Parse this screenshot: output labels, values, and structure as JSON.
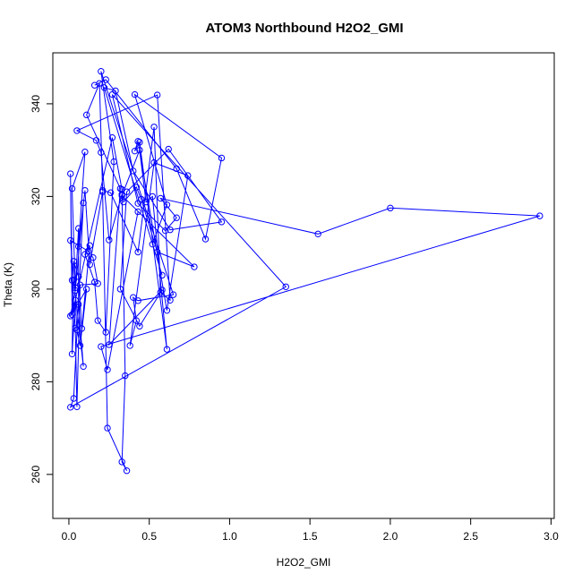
{
  "chart_data": {
    "type": "line",
    "title": "ATOM3 Northbound H2O2_GMI",
    "xlabel": "H2O2_GMI",
    "ylabel": "Theta (K)",
    "xlim": [
      -0.1,
      3.02
    ],
    "ylim": [
      250.5,
      351
    ],
    "x_ticks": [
      0.0,
      0.5,
      1.0,
      1.5,
      2.0,
      2.5,
      3.0
    ],
    "x_tick_labels": [
      "0.0",
      "0.5",
      "1.0",
      "1.5",
      "2.0",
      "2.5",
      "3.0"
    ],
    "y_ticks": [
      260,
      280,
      300,
      320,
      340
    ],
    "y_tick_labels": [
      "260",
      "280",
      "300",
      "320",
      "340"
    ],
    "grid": false,
    "legend": "none",
    "series": [
      {
        "color": "#0000ff",
        "marker": "open-circle",
        "x": [
          0.16,
          0.23,
          0.67,
          0.85,
          0.95,
          0.41,
          0.61,
          0.52,
          0.58,
          0.22,
          0.29,
          0.4,
          0.63,
          0.95,
          0.62,
          0.36,
          0.32,
          0.44,
          0.58,
          0.25,
          0.32,
          0.11,
          0.19,
          0.21,
          0.26,
          0.43,
          0.53,
          0.57,
          0.63,
          0.55,
          0.05,
          0.17,
          0.2,
          0.25,
          0.33,
          0.35,
          0.33,
          0.36,
          0.24,
          0.21,
          0.13,
          0.1,
          0.06,
          0.1,
          0.02,
          0.04,
          0.06,
          0.06,
          0.09,
          0.03,
          0.01,
          0.12,
          0.15,
          0.18,
          0.07,
          0.05,
          0.04,
          0.02,
          0.01,
          0.02,
          0.27,
          0.33,
          0.34,
          0.42,
          0.45,
          0.55,
          0.78,
          0.33,
          0.44,
          0.48,
          0.52,
          0.61,
          0.44,
          0.41,
          0.43,
          0.61,
          0.74,
          0.53,
          0.38,
          0.42,
          0.4,
          0.43,
          0.65,
          0.2,
          0.28,
          0.23,
          0.18,
          0.16,
          0.1,
          0.13,
          0.08,
          0.06,
          0.03,
          0.02,
          0.04,
          0.05,
          0.07,
          0.11,
          0.01,
          0.04,
          0.09,
          0.03,
          0.01,
          1.35,
          0.27,
          0.43,
          0.6,
          0.67,
          0.57,
          1.55,
          2.0,
          2.93,
          0.2,
          0.24,
          0.43
        ],
        "y": [
          344.0,
          345.2,
          326.0,
          310.8,
          328.3,
          342.0,
          318.2,
          309.7,
          303.0,
          343.5,
          342.8,
          325.5,
          312.8,
          314.5,
          330.2,
          321.0,
          300.0,
          292.0,
          299.8,
          288.0,
          321.7,
          337.6,
          344.4,
          321.3,
          320.8,
          308.0,
          335.0,
          299.3,
          297.6,
          341.9,
          334.2,
          332.1,
          329.5,
          310.6,
          320.5,
          281.3,
          262.7,
          260.8,
          270.0,
          321.0,
          305.3,
          321.3,
          309.2,
          329.6,
          321.7,
          300.3,
          313.1,
          296.7,
          283.3,
          302.0,
          310.5,
          308.2,
          306.8,
          301.2,
          300.9,
          274.6,
          291.6,
          301.9,
          324.9,
          294.5,
          332.7,
          321.5,
          318.8,
          322.0,
          319.4,
          308.0,
          304.8,
          320.2,
          330.0,
          318.8,
          320.0,
          287.0,
          331.7,
          329.8,
          331.9,
          295.4,
          324.5,
          327.3,
          287.8,
          293.2,
          298.2,
          297.5,
          298.8,
          347.0,
          327.5,
          290.7,
          293.2,
          301.5,
          307.5,
          309.4,
          291.5,
          302.7,
          306.0,
          286.0,
          297.6,
          291.2,
          287.8,
          300.0,
          294.2,
          299.7,
          318.6,
          276.4,
          274.5,
          300.5,
          342.0,
          318.5,
          312.6,
          315.4,
          319.6,
          311.9,
          317.5,
          315.8,
          287.6,
          282.6,
          316.7
        ]
      }
    ]
  }
}
